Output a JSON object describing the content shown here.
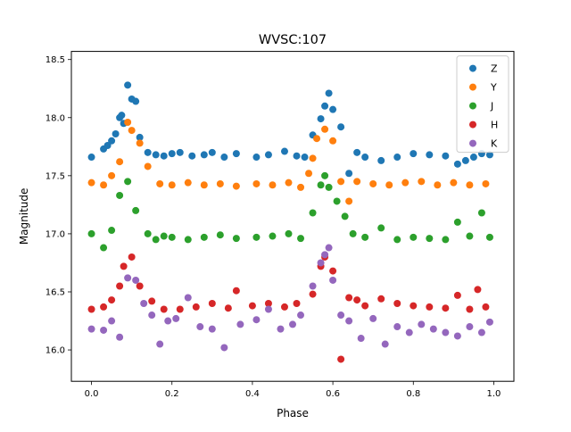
{
  "chart_data": {
    "type": "scatter",
    "title": "WVSC:107",
    "xlabel": "Phase",
    "ylabel": "Magnitude",
    "xlim": [
      -0.05,
      1.05
    ],
    "ylim": [
      15.73,
      18.57
    ],
    "y_inverted": false,
    "x_ticks": [
      "0.0",
      "0.2",
      "0.4",
      "0.6",
      "0.8",
      "1.0"
    ],
    "x_tick_values": [
      0.0,
      0.2,
      0.4,
      0.6,
      0.8,
      1.0
    ],
    "y_ticks": [
      "16.0",
      "16.5",
      "17.0",
      "17.5",
      "18.0",
      "18.5"
    ],
    "y_tick_values": [
      16.0,
      16.5,
      17.0,
      17.5,
      18.0,
      18.5
    ],
    "grid": false,
    "legend_position": "top-right",
    "series": [
      {
        "name": "Z",
        "color": "#1f77b4",
        "x": [
          0.0,
          0.03,
          0.04,
          0.05,
          0.06,
          0.07,
          0.075,
          0.08,
          0.09,
          0.1,
          0.11,
          0.12,
          0.14,
          0.16,
          0.18,
          0.2,
          0.22,
          0.25,
          0.28,
          0.3,
          0.33,
          0.36,
          0.41,
          0.44,
          0.48,
          0.51,
          0.53,
          0.55,
          0.57,
          0.58,
          0.59,
          0.6,
          0.62,
          0.64,
          0.66,
          0.68,
          0.72,
          0.76,
          0.8,
          0.84,
          0.88,
          0.91,
          0.93,
          0.95,
          0.97,
          0.99
        ],
        "y": [
          17.66,
          17.73,
          17.76,
          17.8,
          17.86,
          18.0,
          18.02,
          17.95,
          18.28,
          18.16,
          18.14,
          17.83,
          17.7,
          17.68,
          17.67,
          17.69,
          17.7,
          17.67,
          17.68,
          17.7,
          17.66,
          17.69,
          17.66,
          17.68,
          17.71,
          17.67,
          17.66,
          17.85,
          17.99,
          18.1,
          18.21,
          18.07,
          17.92,
          17.52,
          17.7,
          17.66,
          17.63,
          17.66,
          17.69,
          17.68,
          17.67,
          17.6,
          17.63,
          17.66,
          17.69,
          17.68
        ]
      },
      {
        "name": "Y",
        "color": "#ff7f0e",
        "x": [
          0.0,
          0.03,
          0.05,
          0.07,
          0.09,
          0.1,
          0.12,
          0.14,
          0.17,
          0.2,
          0.24,
          0.28,
          0.32,
          0.36,
          0.41,
          0.45,
          0.49,
          0.52,
          0.54,
          0.55,
          0.56,
          0.58,
          0.6,
          0.62,
          0.64,
          0.66,
          0.7,
          0.74,
          0.78,
          0.82,
          0.86,
          0.9,
          0.94,
          0.98
        ],
        "y": [
          17.44,
          17.42,
          17.5,
          17.62,
          17.96,
          17.89,
          17.78,
          17.58,
          17.43,
          17.42,
          17.44,
          17.42,
          17.43,
          17.41,
          17.43,
          17.42,
          17.44,
          17.4,
          17.52,
          17.65,
          17.82,
          17.9,
          17.8,
          17.45,
          17.28,
          17.45,
          17.43,
          17.42,
          17.44,
          17.45,
          17.42,
          17.44,
          17.42,
          17.43
        ]
      },
      {
        "name": "J",
        "color": "#2ca02c",
        "x": [
          0.0,
          0.03,
          0.05,
          0.07,
          0.09,
          0.11,
          0.14,
          0.16,
          0.18,
          0.2,
          0.24,
          0.28,
          0.32,
          0.36,
          0.41,
          0.45,
          0.49,
          0.52,
          0.55,
          0.57,
          0.58,
          0.59,
          0.61,
          0.63,
          0.65,
          0.68,
          0.72,
          0.76,
          0.8,
          0.84,
          0.88,
          0.91,
          0.94,
          0.97,
          0.99
        ],
        "y": [
          17.0,
          16.88,
          17.03,
          17.33,
          17.45,
          17.2,
          17.0,
          16.95,
          16.98,
          16.97,
          16.95,
          16.97,
          16.99,
          16.96,
          16.97,
          16.98,
          17.0,
          16.96,
          17.18,
          17.42,
          17.5,
          17.4,
          17.28,
          17.15,
          17.0,
          16.97,
          17.05,
          16.95,
          16.97,
          16.96,
          16.95,
          17.1,
          16.98,
          17.18,
          16.97
        ]
      },
      {
        "name": "H",
        "color": "#d62728",
        "x": [
          0.0,
          0.03,
          0.05,
          0.07,
          0.08,
          0.1,
          0.12,
          0.15,
          0.18,
          0.22,
          0.26,
          0.3,
          0.34,
          0.36,
          0.4,
          0.44,
          0.48,
          0.51,
          0.55,
          0.57,
          0.58,
          0.6,
          0.62,
          0.64,
          0.66,
          0.68,
          0.72,
          0.76,
          0.8,
          0.84,
          0.88,
          0.91,
          0.94,
          0.96,
          0.98
        ],
        "y": [
          16.35,
          16.37,
          16.43,
          16.55,
          16.72,
          16.8,
          16.55,
          16.42,
          16.35,
          16.35,
          16.37,
          16.4,
          16.36,
          16.51,
          16.38,
          16.4,
          16.37,
          16.4,
          16.48,
          16.72,
          16.8,
          16.68,
          15.92,
          16.45,
          16.43,
          16.38,
          16.44,
          16.4,
          16.38,
          16.37,
          16.36,
          16.47,
          16.35,
          16.52,
          16.37
        ]
      },
      {
        "name": "K",
        "color": "#9467bd",
        "x": [
          0.0,
          0.03,
          0.05,
          0.07,
          0.09,
          0.11,
          0.13,
          0.15,
          0.17,
          0.19,
          0.21,
          0.24,
          0.27,
          0.3,
          0.33,
          0.37,
          0.41,
          0.44,
          0.47,
          0.5,
          0.52,
          0.55,
          0.57,
          0.58,
          0.59,
          0.6,
          0.62,
          0.64,
          0.67,
          0.7,
          0.73,
          0.76,
          0.79,
          0.82,
          0.85,
          0.88,
          0.91,
          0.94,
          0.97,
          0.99
        ],
        "y": [
          16.18,
          16.17,
          16.25,
          16.11,
          16.62,
          16.6,
          16.4,
          16.3,
          16.05,
          16.25,
          16.27,
          16.45,
          16.2,
          16.18,
          16.02,
          16.22,
          16.26,
          16.35,
          16.18,
          16.22,
          16.3,
          16.55,
          16.75,
          16.82,
          16.88,
          16.6,
          16.3,
          16.25,
          16.1,
          16.27,
          16.05,
          16.2,
          16.15,
          16.22,
          16.18,
          16.15,
          16.12,
          16.2,
          16.15,
          16.24
        ]
      }
    ]
  }
}
